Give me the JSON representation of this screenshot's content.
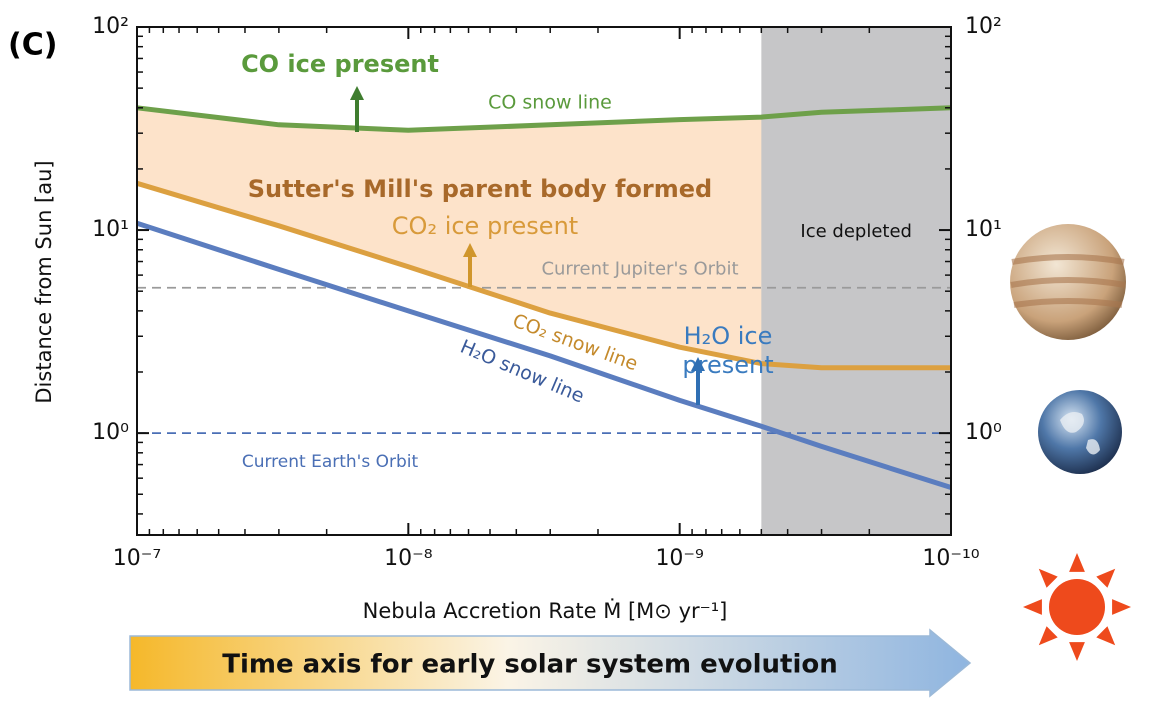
{
  "chart_data": {
    "type": "line",
    "panel_label": "(C)",
    "x_label": "Nebula Accretion Rate  Ṁ  [M⊙ yr⁻¹]",
    "y_label": "Distance from Sun  [au]",
    "log_x": true,
    "log_y": true,
    "xlim": [
      1e-07,
      1e-10
    ],
    "ylim": [
      0.315,
      100
    ],
    "xticks": [
      {
        "value": 1e-07,
        "label": "10⁻⁷"
      },
      {
        "value": 1e-08,
        "label": "10⁻⁸"
      },
      {
        "value": 1e-09,
        "label": "10⁻⁹"
      },
      {
        "value": 1e-10,
        "label": "10⁻¹⁰"
      }
    ],
    "yticks": [
      {
        "value": 1,
        "label": "10⁰"
      },
      {
        "value": 10,
        "label": "10¹"
      },
      {
        "value": 100,
        "label": "10²"
      }
    ],
    "x": [
      1e-07,
      3e-08,
      1e-08,
      3e-09,
      1e-09,
      5e-10,
      3e-10,
      1e-10
    ],
    "series": [
      {
        "name": "CO snow line",
        "color": "#6ea04a",
        "values": [
          40,
          33,
          31,
          33,
          35,
          36,
          38,
          40
        ]
      },
      {
        "name": "CO₂ snow line",
        "color": "#dca040",
        "values": [
          17,
          10.5,
          6.6,
          3.9,
          2.65,
          2.2,
          2.1,
          2.1
        ]
      },
      {
        "name": "H₂O snow line",
        "color": "#5b7dbf",
        "values": [
          10.8,
          6.4,
          4.0,
          2.4,
          1.45,
          1.08,
          0.86,
          0.54
        ]
      }
    ],
    "region_color": "#fde3ca",
    "shaded_region": {
      "xrange": [
        5e-10,
        1e-10
      ],
      "color": "#c6c6c8",
      "label": "Ice depleted"
    },
    "hlines": [
      {
        "value": 5.2,
        "label": "Current Jupiter's Orbit",
        "color": "#9a9a9a"
      },
      {
        "value": 1,
        "label": "Current Earth's Orbit",
        "color": "#4a6fb5"
      }
    ],
    "annotations": [
      {
        "text": "CO ice present",
        "color": "#5a9a3c"
      },
      {
        "text": "Sutter's Mill's parent body formed",
        "color": "#a8692a"
      },
      {
        "text": "CO₂ ice present",
        "color": "#d89a3a"
      },
      {
        "text": "H₂O ice",
        "color": "#3a7bbf"
      },
      {
        "text": "present",
        "color": "#3a7bbf"
      }
    ],
    "time_axis_label": "Time axis for early solar system evolution"
  }
}
